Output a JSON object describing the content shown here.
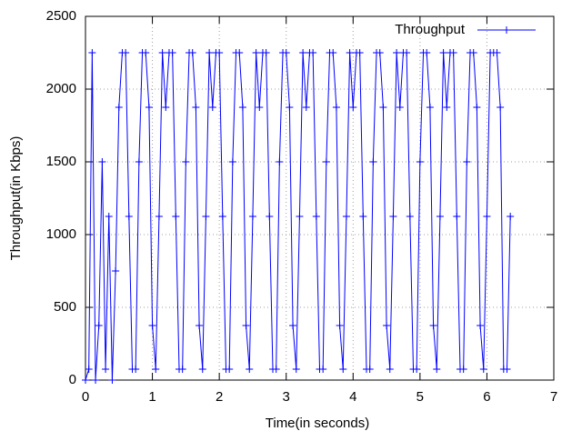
{
  "chart_data": {
    "type": "line",
    "xlabel": "Time(in seconds)",
    "ylabel": "Throughput(in Kbps)",
    "x": [
      0,
      0.05,
      0.1,
      0.15,
      0.2,
      0.25,
      0.3,
      0.35,
      0.4,
      0.45,
      0.5,
      0.55,
      0.6,
      0.65,
      0.7,
      0.75,
      0.8,
      0.85,
      0.9,
      0.95,
      1,
      1.05,
      1.1,
      1.15,
      1.2,
      1.25,
      1.3,
      1.35,
      1.4,
      1.45,
      1.5,
      1.55,
      1.6,
      1.65,
      1.7,
      1.75,
      1.8,
      1.85,
      1.9,
      1.95,
      2,
      2.05,
      2.1,
      2.15,
      2.2,
      2.25,
      2.3,
      2.35,
      2.4,
      2.45,
      2.5,
      2.55,
      2.6,
      2.65,
      2.7,
      2.75,
      2.8,
      2.85,
      2.9,
      2.95,
      3,
      3.05,
      3.1,
      3.15,
      3.2,
      3.25,
      3.3,
      3.35,
      3.4,
      3.45,
      3.5,
      3.55,
      3.6,
      3.65,
      3.7,
      3.75,
      3.8,
      3.85,
      3.9,
      3.95,
      4,
      4.05,
      4.1,
      4.15,
      4.2,
      4.25,
      4.3,
      4.35,
      4.4,
      4.45,
      4.5,
      4.55,
      4.6,
      4.65,
      4.7,
      4.75,
      4.8,
      4.85,
      4.9,
      4.95,
      5,
      5.05,
      5.1,
      5.15,
      5.2,
      5.25,
      5.3,
      5.35,
      5.4,
      5.45,
      5.5,
      5.55,
      5.6,
      5.65,
      5.7,
      5.75,
      5.8,
      5.85,
      5.9,
      5.95,
      6,
      6.05,
      6.1,
      6.15,
      6.2,
      6.25,
      6.3,
      6.35
    ],
    "series": [
      {
        "name": "Throughput",
        "color": "#0000ff",
        "values": [
          0,
          75,
          2250,
          0,
          375,
          1500,
          75,
          1125,
          0,
          750,
          1875,
          2250,
          2250,
          1125,
          75,
          75,
          1500,
          2250,
          2250,
          1875,
          375,
          75,
          1125,
          2250,
          1875,
          2250,
          2250,
          1125,
          75,
          75,
          1500,
          2250,
          2250,
          1875,
          375,
          75,
          1125,
          2250,
          1875,
          2250,
          2250,
          1125,
          75,
          75,
          1500,
          2250,
          2250,
          1875,
          375,
          75,
          1125,
          2250,
          1875,
          2250,
          2250,
          1125,
          75,
          75,
          1500,
          2250,
          2250,
          1875,
          375,
          75,
          1125,
          2250,
          1875,
          2250,
          2250,
          1125,
          75,
          75,
          1500,
          2250,
          2250,
          1875,
          375,
          75,
          1125,
          2250,
          1875,
          2250,
          2250,
          1125,
          75,
          75,
          1500,
          2250,
          2250,
          1875,
          375,
          75,
          1125,
          2250,
          1875,
          2250,
          2250,
          1125,
          75,
          75,
          1500,
          2250,
          2250,
          1875,
          375,
          75,
          1125,
          2250,
          1875,
          2250,
          2250,
          1125,
          75,
          75,
          1500,
          2250,
          2250,
          1875,
          375,
          75,
          1125,
          2250,
          2250,
          2250,
          1875,
          75,
          75,
          1125
        ]
      }
    ],
    "xlim": [
      0,
      7
    ],
    "xticks": [
      0,
      1,
      2,
      3,
      4,
      5,
      6,
      7
    ],
    "ylim": [
      0,
      2500
    ],
    "yticks": [
      0,
      500,
      1000,
      1500,
      2000,
      2500
    ],
    "grid": true,
    "legend": "top-right"
  }
}
